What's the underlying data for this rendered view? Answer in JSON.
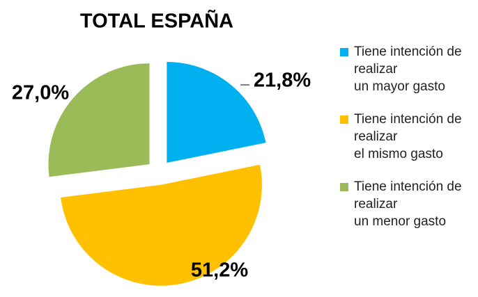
{
  "chart_data": {
    "type": "pie",
    "title": "TOTAL ESPAÑA",
    "categories": [
      "Tiene intención de\nrealizar\nun mayor gasto",
      "Tiene intención de\nrealizar\nel mismo gasto",
      "Tiene intención de\nrealizar\nun menor gasto"
    ],
    "values": [
      21.8,
      51.2,
      27.0
    ],
    "value_labels": [
      "21,8%",
      "51,2%",
      "27,0%"
    ],
    "colors": [
      "#00b0f0",
      "#ffc000",
      "#9bbb59"
    ],
    "legend": "right"
  }
}
